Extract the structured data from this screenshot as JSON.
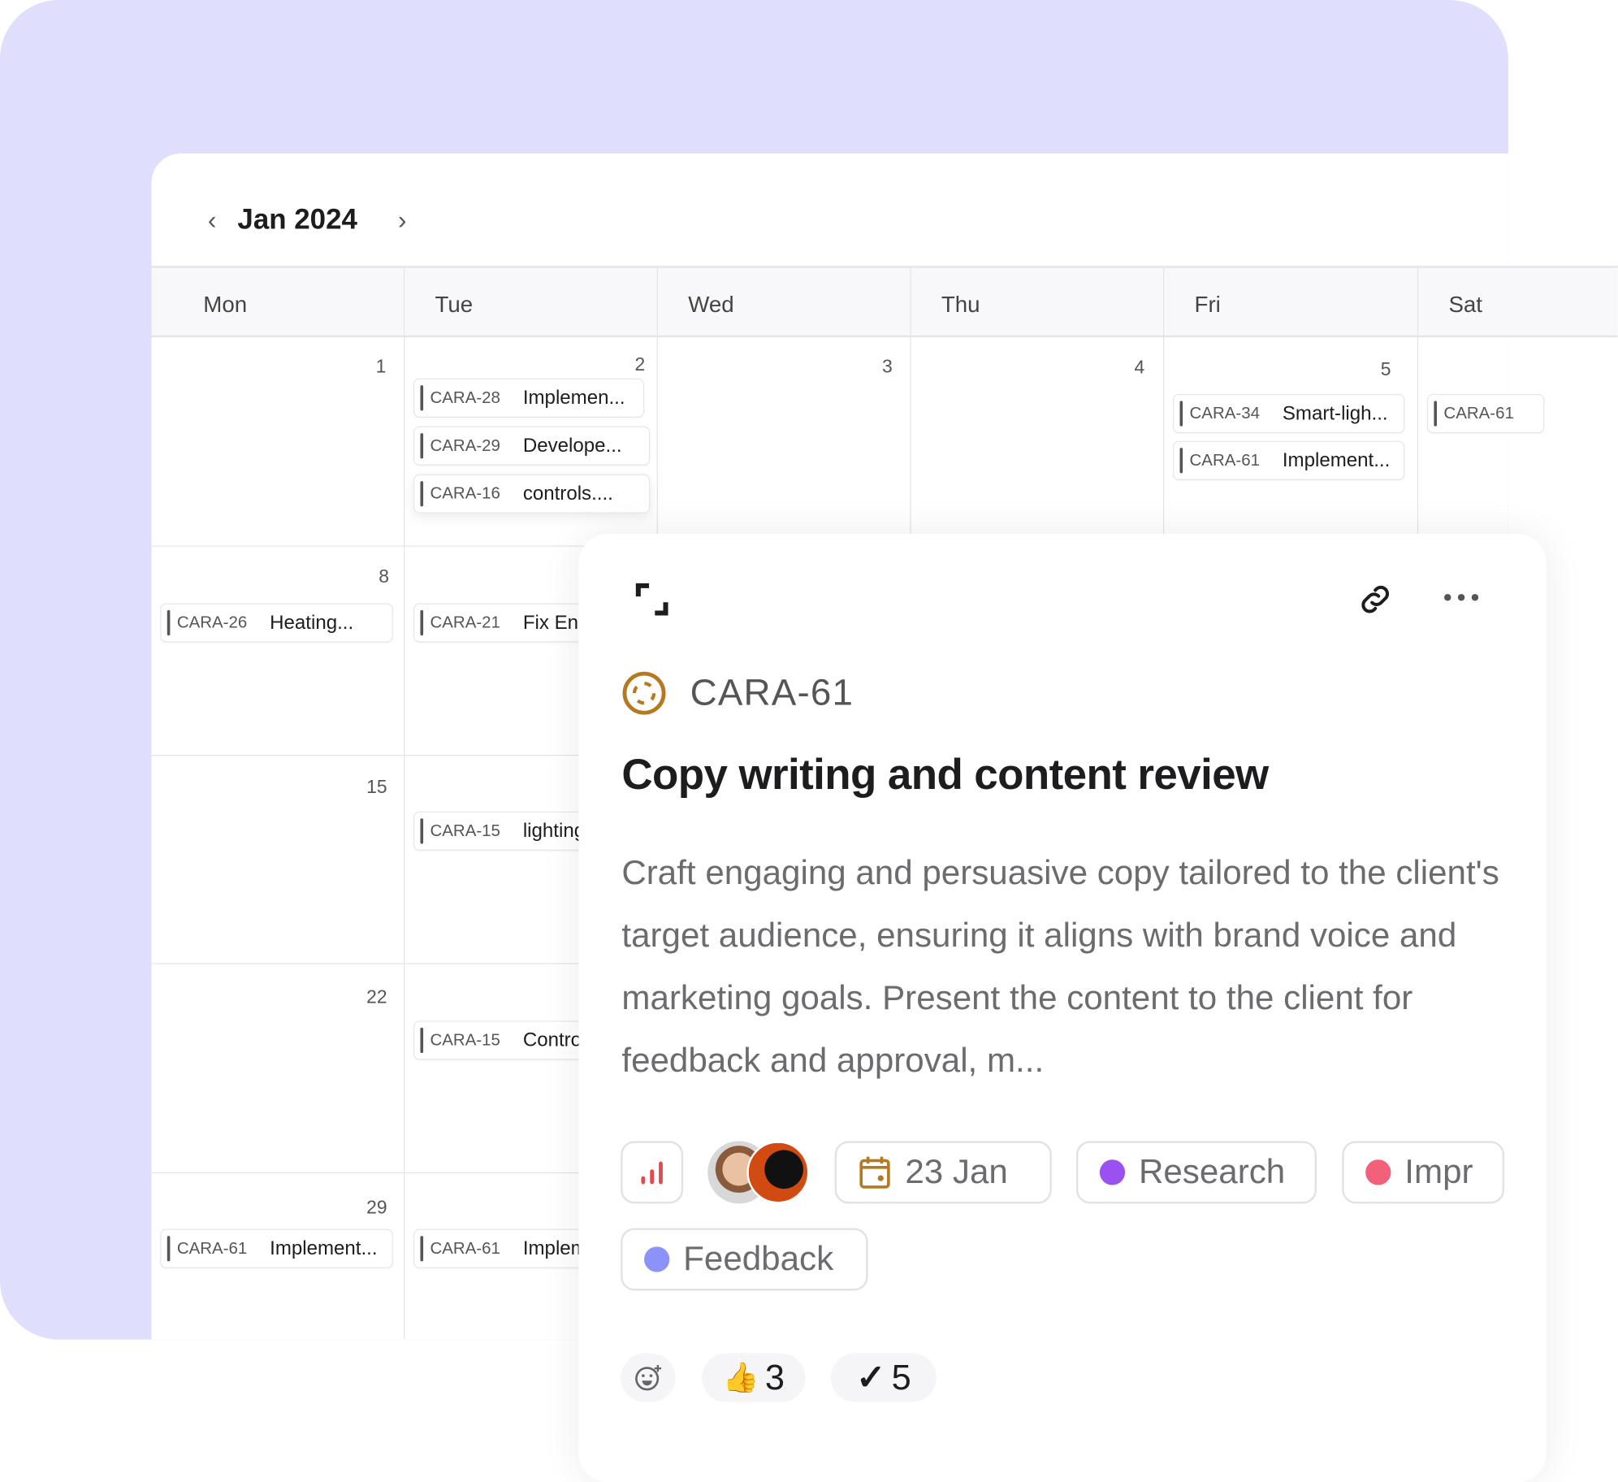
{
  "calendar": {
    "month": "Jan 2024",
    "weekdays": [
      "Mon",
      "Tue",
      "Wed",
      "Thu",
      "Fri",
      "Sat"
    ],
    "days": [
      {
        "n": "1"
      },
      {
        "n": "2"
      },
      {
        "n": "3"
      },
      {
        "n": "4"
      },
      {
        "n": "5"
      },
      {
        "n": "8"
      },
      {
        "n": "15"
      },
      {
        "n": "22"
      },
      {
        "n": "29"
      }
    ],
    "events": [
      {
        "id": "CARA-28",
        "title": "Implemen..."
      },
      {
        "id": "CARA-29",
        "title": "Develope..."
      },
      {
        "id": "CARA-16",
        "title": "controls...."
      },
      {
        "id": "CARA-34",
        "title": "Smart-ligh..."
      },
      {
        "id": "CARA-61",
        "title": "Implement..."
      },
      {
        "id": "CARA-61",
        "title": ""
      },
      {
        "id": "CARA-26",
        "title": "Heating..."
      },
      {
        "id": "CARA-21",
        "title": "Fix Ene"
      },
      {
        "id": "CARA-15",
        "title": "lighting"
      },
      {
        "id": "CARA-15",
        "title": "Contro"
      },
      {
        "id": "CARA-61",
        "title": "Implement..."
      },
      {
        "id": "CARA-61",
        "title": "Implem"
      }
    ]
  },
  "detail": {
    "key": "CARA-61",
    "title": "Copy writing and content review",
    "description": "Craft engaging and persuasive copy tailored to the client's target audience, ensuring it aligns with brand voice and marketing goals. Present the content to the client for feedback and approval, m...",
    "priority_icon": "signal-bars-icon",
    "priority_color": "#e5484d",
    "status_color": "#b7791f",
    "due_date": "23 Jan",
    "labels": [
      {
        "name": "Research",
        "color": "#9b51f0"
      },
      {
        "name": "Impr",
        "color": "#f2607a"
      },
      {
        "name": "Feedback",
        "color": "#8b93f8"
      }
    ],
    "reactions": [
      {
        "emoji": "👍",
        "count": "3"
      },
      {
        "emoji": "✓",
        "count": "5"
      }
    ]
  },
  "colors": {
    "background": "#dfdefc"
  }
}
